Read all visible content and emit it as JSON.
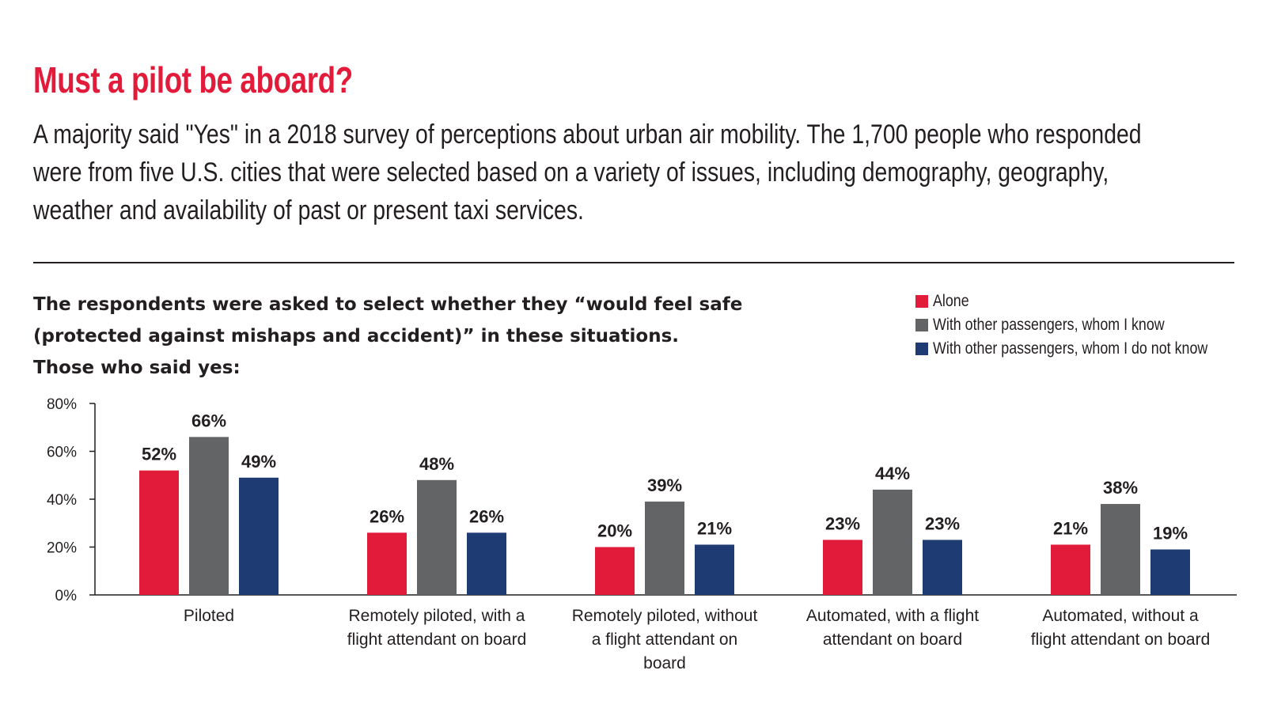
{
  "header": {
    "title": "Must a pilot be aboard?",
    "subtitle": "A majority said \"Yes\" in a 2018 survey of perceptions about urban air mobility. The 1,700 people who responded were from five U.S. cities that were selected based on a variety of issues, including demography, geography, weather and availability of past or present taxi services.",
    "question": "The respondents were asked to select whether they “would feel safe (protected against mishaps and accident)” in these situations. Those who said yes:"
  },
  "colors": {
    "title": "#e31b3b",
    "alone": "#e31b3b",
    "known": "#636466",
    "unknown": "#1f3b73",
    "text": "#231f20"
  },
  "chart_data": {
    "type": "bar",
    "categories": [
      [
        "Piloted"
      ],
      [
        "Remotely piloted, with a",
        "flight attendant on board"
      ],
      [
        "Remotely piloted, without",
        "a flight attendant on",
        "board"
      ],
      [
        "Automated, with a flight",
        "attendant on board"
      ],
      [
        "Automated, without a",
        "flight attendant on board"
      ]
    ],
    "series": [
      {
        "name": "Alone",
        "color": "#e31b3b",
        "values": [
          52,
          26,
          20,
          23,
          21
        ],
        "labels": [
          "52%",
          "26%",
          "20%",
          "23%",
          "21%"
        ]
      },
      {
        "name": "With other passengers, whom I know",
        "color": "#636466",
        "values": [
          66,
          48,
          39,
          44,
          38
        ],
        "labels": [
          "66%",
          "48%",
          "39%",
          "44%",
          "38%"
        ]
      },
      {
        "name": "With other passengers, whom I do not know",
        "color": "#1f3b73",
        "values": [
          49,
          26,
          21,
          23,
          19
        ],
        "labels": [
          "49%",
          "26%",
          "21%",
          "23%",
          "19%"
        ]
      }
    ],
    "yticks": [
      "0%",
      "20%",
      "40%",
      "60%",
      "80%"
    ],
    "ylim": [
      0,
      80
    ],
    "legend": "top-right",
    "grid": false
  }
}
